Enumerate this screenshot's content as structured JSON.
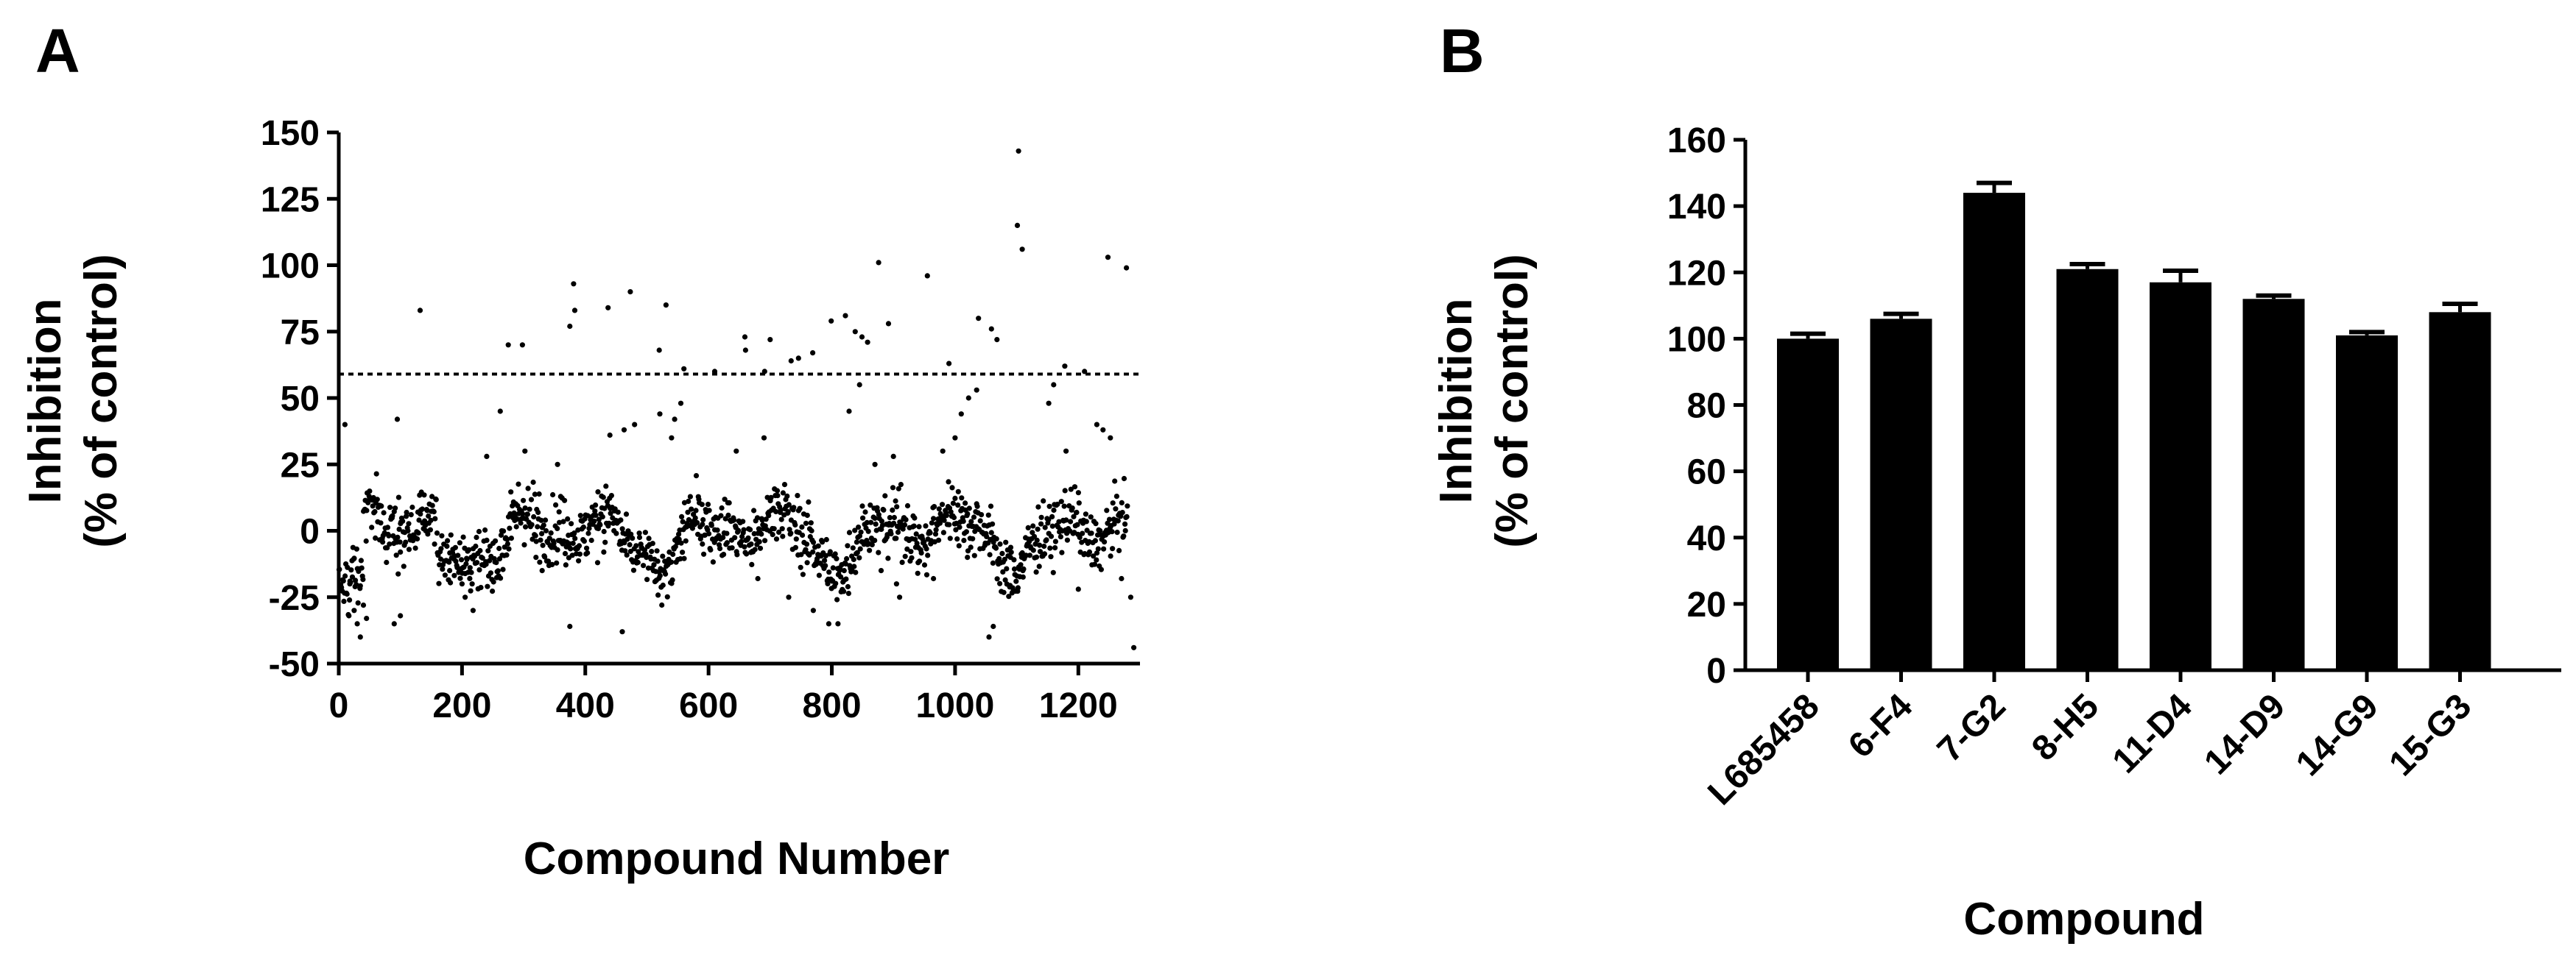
{
  "figure": {
    "panels": [
      {
        "letter": "A"
      },
      {
        "letter": "B"
      }
    ]
  },
  "chart_data": [
    {
      "panel": "A",
      "type": "scatter",
      "xlabel": "Compound Number",
      "ylabel": [
        "Inhibition",
        "(% of control)"
      ],
      "xlim": [
        0,
        1300
      ],
      "ylim": [
        -50,
        150
      ],
      "xticks": [
        0,
        200,
        400,
        600,
        800,
        1000,
        1200
      ],
      "yticks": [
        -50,
        -25,
        0,
        25,
        50,
        75,
        100,
        125,
        150
      ],
      "threshold": {
        "y": 59,
        "style": "dashed"
      },
      "grid": false,
      "n_points": 1280,
      "points": [
        [
          132,
          83
        ],
        [
          381,
          93
        ],
        [
          383,
          83
        ],
        [
          473,
          90
        ],
        [
          437,
          84
        ],
        [
          531,
          85
        ],
        [
          275,
          70
        ],
        [
          298,
          70
        ],
        [
          375,
          77
        ],
        [
          520,
          68
        ],
        [
          659,
          73
        ],
        [
          660,
          68
        ],
        [
          700,
          72
        ],
        [
          691,
          60
        ],
        [
          734,
          64
        ],
        [
          746,
          65
        ],
        [
          769,
          67
        ],
        [
          799,
          79
        ],
        [
          822,
          81
        ],
        [
          838,
          75
        ],
        [
          849,
          73
        ],
        [
          858,
          71
        ],
        [
          892,
          78
        ],
        [
          876,
          101
        ],
        [
          955,
          96
        ],
        [
          1038,
          80
        ],
        [
          1059,
          76
        ],
        [
          1068,
          72
        ],
        [
          1101,
          115
        ],
        [
          1103,
          143
        ],
        [
          1109,
          106
        ],
        [
          1178,
          62
        ],
        [
          1248,
          103
        ],
        [
          1278,
          99
        ],
        [
          560,
          61
        ],
        [
          610,
          60
        ],
        [
          990,
          63
        ],
        [
          1210,
          60
        ],
        [
          18,
          -20
        ],
        [
          25,
          -30
        ],
        [
          30,
          -35
        ],
        [
          35,
          -40
        ],
        [
          40,
          -28
        ],
        [
          45,
          -33
        ],
        [
          90,
          -35
        ],
        [
          100,
          -32
        ],
        [
          218,
          -30
        ],
        [
          375,
          -36
        ],
        [
          460,
          -38
        ],
        [
          770,
          -30
        ],
        [
          795,
          -35
        ],
        [
          810,
          -35
        ],
        [
          1055,
          -40
        ],
        [
          1062,
          -36
        ],
        [
          1290,
          -44
        ],
        [
          205,
          -25
        ],
        [
          10,
          40
        ],
        [
          95,
          42
        ],
        [
          240,
          28
        ],
        [
          262,
          45
        ],
        [
          440,
          36
        ],
        [
          463,
          38
        ],
        [
          480,
          40
        ],
        [
          521,
          44
        ],
        [
          545,
          42
        ],
        [
          555,
          48
        ],
        [
          828,
          45
        ],
        [
          845,
          55
        ],
        [
          1010,
          44
        ],
        [
          1022,
          50
        ],
        [
          1035,
          53
        ],
        [
          1152,
          48
        ],
        [
          1160,
          55
        ],
        [
          1230,
          40
        ],
        [
          1240,
          38
        ],
        [
          1252,
          35
        ],
        [
          1180,
          30
        ],
        [
          645,
          30
        ],
        [
          690,
          35
        ],
        [
          302,
          30
        ],
        [
          355,
          25
        ],
        [
          980,
          30
        ],
        [
          900,
          28
        ],
        [
          870,
          25
        ],
        [
          1000,
          35
        ],
        [
          540,
          35
        ],
        [
          100,
          -8
        ],
        [
          180,
          -15
        ],
        [
          200,
          -20
        ],
        [
          215,
          -10
        ],
        [
          590,
          -5
        ],
        [
          760,
          -12
        ],
        [
          880,
          -15
        ],
        [
          905,
          -20
        ],
        [
          940,
          -12
        ],
        [
          965,
          -18
        ],
        [
          1090,
          -10
        ],
        [
          1110,
          -15
        ],
        [
          1200,
          -22
        ],
        [
          1270,
          -18
        ],
        [
          1285,
          -25
        ],
        [
          320,
          -10
        ],
        [
          330,
          -15
        ],
        [
          420,
          -12
        ],
        [
          430,
          -8
        ],
        [
          680,
          -18
        ],
        [
          730,
          -25
        ],
        [
          820,
          -15
        ],
        [
          910,
          -25
        ],
        [
          1020,
          -10
        ]
      ]
    },
    {
      "panel": "B",
      "type": "bar",
      "xlabel": "Compound",
      "ylabel": [
        "Inhibition",
        "(% of control)"
      ],
      "ylim": [
        0,
        160
      ],
      "yticks": [
        0,
        20,
        40,
        60,
        80,
        100,
        120,
        140,
        160
      ],
      "categories": [
        "L685458",
        "6-F4",
        "7-G2",
        "8-H5",
        "11-D4",
        "14-D9",
        "14-G9",
        "15-G3"
      ],
      "values": [
        100,
        106,
        144,
        121,
        117,
        112,
        101,
        108
      ],
      "errors": [
        1.5,
        1.5,
        3.0,
        1.5,
        3.5,
        1.0,
        1.0,
        2.5
      ],
      "grid": false
    }
  ]
}
